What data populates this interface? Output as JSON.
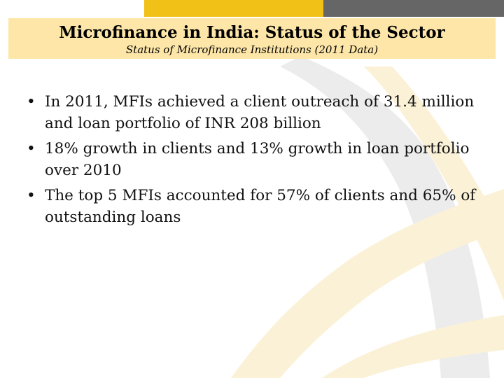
{
  "slide": {
    "title": "Microfinance in India: Status of the Sector",
    "subtitle": "Status of Microfinance Institutions (2011 Data)",
    "bullet_marker": "•",
    "bullets": [
      "In 2011, MFIs achieved a client outreach of 31.4 million and loan portfolio of INR 208 billion",
      "18% growth in clients and 13% growth in loan portfolio over 2010",
      "The top 5 MFIs accounted for 57% of clients and 65% of outstanding loans"
    ]
  },
  "colors": {
    "accent_gold": "#f2c118",
    "accent_gray": "#666666",
    "title_band": "#fde6a8",
    "swoosh_light_gold": "#fbf1d6",
    "swoosh_light_gray": "#ececec"
  }
}
